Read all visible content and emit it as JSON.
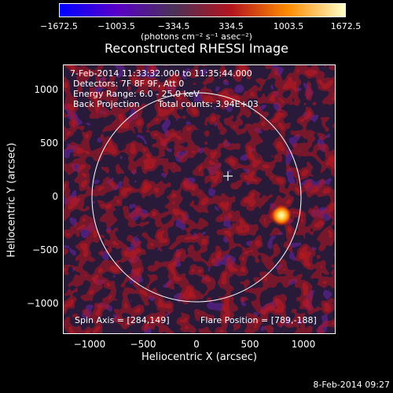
{
  "colorbar": {
    "ticks": [
      "−1672.5",
      "−1003.5",
      "−334.5",
      "334.5",
      "1003.5",
      "1672.5"
    ],
    "units": "(photons cm⁻² s⁻¹ asec⁻²)",
    "colors": [
      "#0000ff",
      "#5a00c8",
      "#4b3258",
      "#b4141e",
      "#ff8c00",
      "#ffffc8"
    ]
  },
  "title": "Reconstructed RHESSI Image",
  "info": {
    "time_range": "7-Feb-2014 11:33:32.000 to 11:35:44.000",
    "detectors": "Detectors: 7F 8F 9F, Att 0",
    "energy": "Energy Range: 6.0 - 25.0 keV",
    "method": "Back Projection",
    "counts": "Total counts: 3.94E+03",
    "spin_axis": "Spin Axis = [284,149]",
    "flare_position": "Flare Position = [789,-188]"
  },
  "axes": {
    "xlabel": "Heliocentric X (arcsec)",
    "ylabel": "Heliocentric Y (arcsec)",
    "xticks": [
      "−1000",
      "−500",
      "0",
      "500",
      "1000"
    ],
    "yticks": [
      "1000",
      "500",
      "0",
      "−500",
      "−1000"
    ]
  },
  "date_stamp": "8-Feb-2014 09:27"
}
